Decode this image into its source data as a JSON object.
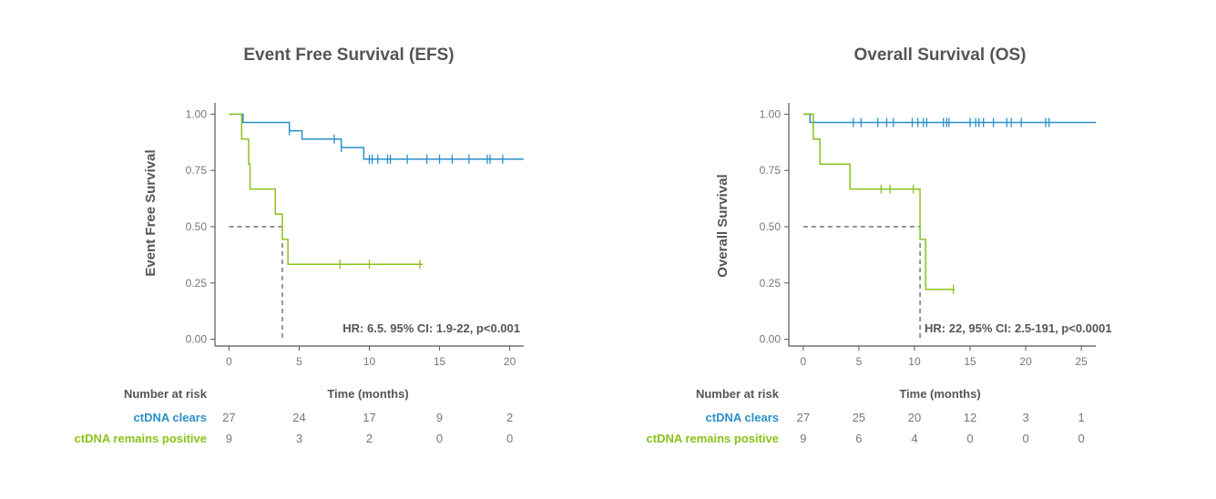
{
  "colors": {
    "clears": "#2a8fc8",
    "positive": "#8ac21b",
    "axis": "#555555",
    "text": "#555555",
    "muted": "#777777"
  },
  "chart_data": [
    {
      "type": "line",
      "subtype": "kaplan-meier",
      "title": "Event Free Survival (EFS)",
      "ylabel": "Event Free Survival",
      "xlabel": "Time (months)",
      "xlim": [
        -1,
        21
      ],
      "ylim": [
        -0.03,
        1.05
      ],
      "xticks": [
        0,
        5,
        10,
        15,
        20
      ],
      "yticks": [
        0,
        0.25,
        0.5,
        0.75,
        1.0
      ],
      "ytick_labels": [
        "0.00",
        "0.25",
        "0.50",
        "0.75",
        "1.00"
      ],
      "annotation": "HR: 6.5. 95% CI: 1.9-22, p<0.001",
      "median_line": {
        "x": 3.8,
        "y": 0.5
      },
      "series": [
        {
          "name": "ctDNA clears",
          "color_key": "clears",
          "steps": [
            [
              0,
              1.0
            ],
            [
              1.0,
              0.963
            ],
            [
              4.3,
              0.926
            ],
            [
              5.2,
              0.889
            ],
            [
              8.0,
              0.852
            ],
            [
              9.6,
              0.8
            ]
          ],
          "end_x": 21,
          "censors": [
            4.3,
            7.5,
            8.0,
            10.0,
            10.2,
            10.6,
            11.3,
            11.5,
            12.7,
            14.1,
            15.0,
            15.9,
            17.1,
            18.4,
            18.6,
            19.5
          ]
        },
        {
          "name": "ctDNA remains positive",
          "color_key": "positive",
          "steps": [
            [
              0,
              1.0
            ],
            [
              0.9,
              0.889
            ],
            [
              1.4,
              0.778
            ],
            [
              1.5,
              0.667
            ],
            [
              3.3,
              0.556
            ],
            [
              3.8,
              0.444
            ],
            [
              4.2,
              0.333
            ]
          ],
          "end_x": 13.8,
          "censors": [
            7.9,
            10.0,
            13.6
          ]
        }
      ],
      "risk_table": {
        "header": "Number at risk",
        "times": [
          0,
          5,
          10,
          15,
          20
        ],
        "rows": [
          {
            "label": "ctDNA clears",
            "color_key": "clears",
            "values": [
              "27",
              "24",
              "17",
              "9",
              "2"
            ]
          },
          {
            "label": "ctDNA remains positive",
            "color_key": "positive",
            "values": [
              "9",
              "3",
              "2",
              "0",
              "0"
            ]
          }
        ]
      }
    },
    {
      "type": "line",
      "subtype": "kaplan-meier",
      "title": "Overall Survival (OS)",
      "ylabel": "Overall Survival",
      "xlabel": "Time (months)",
      "xlim": [
        -1.3,
        26.3
      ],
      "ylim": [
        -0.03,
        1.05
      ],
      "xticks": [
        0,
        5,
        10,
        15,
        20,
        25
      ],
      "yticks": [
        0,
        0.25,
        0.5,
        0.75,
        1.0
      ],
      "ytick_labels": [
        "0.00",
        "0.25",
        "0.50",
        "0.75",
        "1.00"
      ],
      "annotation": "HR: 22, 95% CI: 2.5-191, p<0.0001",
      "median_line": {
        "x": 10.5,
        "y": 0.5
      },
      "series": [
        {
          "name": "ctDNA clears",
          "color_key": "clears",
          "steps": [
            [
              0,
              1.0
            ],
            [
              0.6,
              0.963
            ]
          ],
          "end_x": 26.3,
          "censors": [
            4.5,
            5.2,
            6.7,
            7.5,
            8.1,
            9.8,
            10.3,
            10.8,
            11.1,
            12.6,
            12.9,
            13.1,
            15.0,
            15.5,
            15.8,
            16.2,
            17.1,
            18.3,
            18.7,
            19.6,
            21.8,
            22.1
          ]
        },
        {
          "name": "ctDNA remains positive",
          "color_key": "positive",
          "steps": [
            [
              0,
              1.0
            ],
            [
              0.9,
              0.889
            ],
            [
              1.5,
              0.778
            ],
            [
              4.2,
              0.667
            ],
            [
              10.5,
              0.444
            ],
            [
              11.0,
              0.222
            ]
          ],
          "end_x": 13.6,
          "censors": [
            7.0,
            7.8,
            9.9,
            13.5
          ]
        }
      ],
      "risk_table": {
        "header": "Number at risk",
        "times": [
          0,
          5,
          10,
          15,
          20,
          25
        ],
        "rows": [
          {
            "label": "ctDNA clears",
            "color_key": "clears",
            "values": [
              "27",
              "25",
              "20",
              "12",
              "3",
              "1"
            ]
          },
          {
            "label": "ctDNA remains positive",
            "color_key": "positive",
            "values": [
              "9",
              "6",
              "4",
              "0",
              "0",
              "0"
            ]
          }
        ]
      }
    }
  ]
}
